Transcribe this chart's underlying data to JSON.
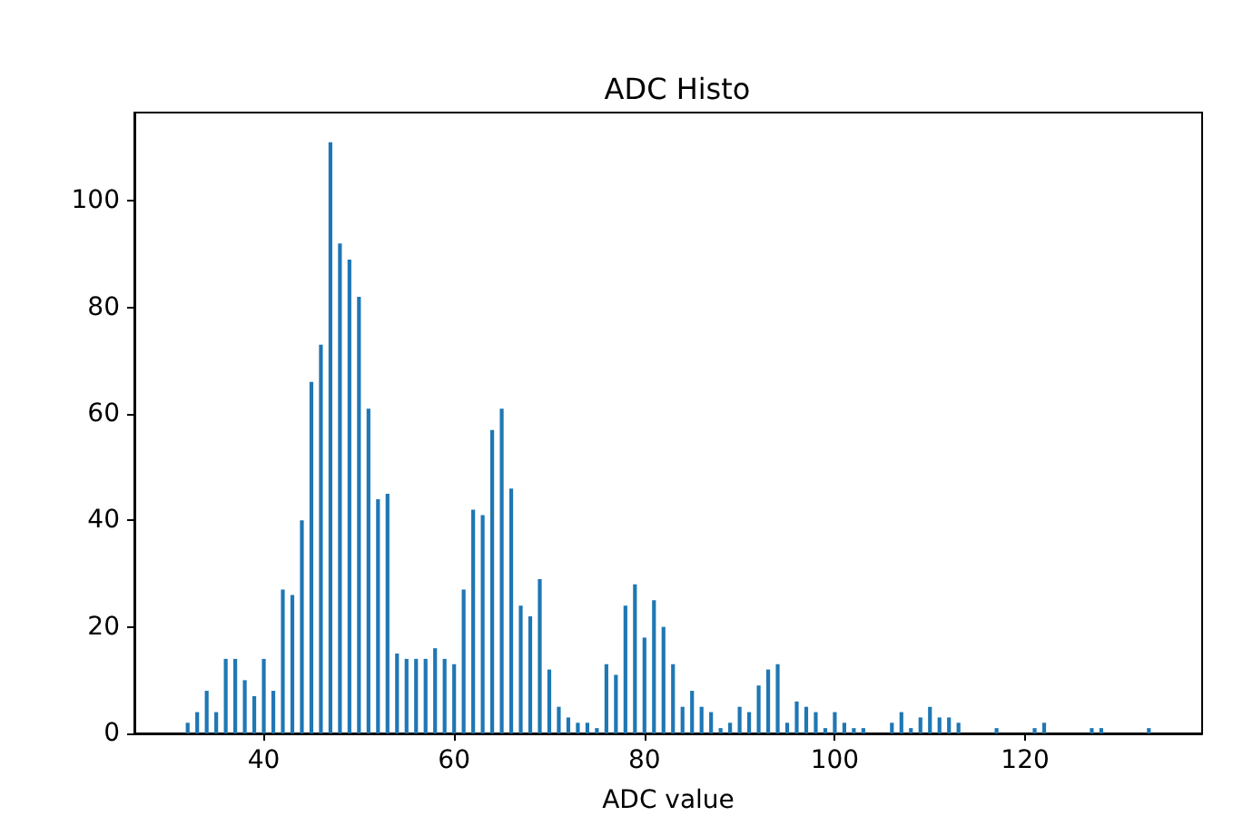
{
  "chart_data": {
    "type": "histogram",
    "title": "ADC Histo",
    "xlabel": "ADC value",
    "color": "#1f77b4",
    "bins": [
      31.5,
      32.5,
      33.5,
      34.5,
      35.5,
      36.5,
      37.5,
      38.5,
      39.5,
      40.5,
      41.5,
      42.5,
      43.5,
      44.5,
      45.5,
      46.5,
      47.5,
      48.5,
      49.5,
      50.5,
      51.5,
      52.5,
      53.5,
      54.5,
      55.5,
      56.5,
      57.5,
      58.5,
      59.5,
      60.5,
      61.5,
      62.5,
      63.5,
      64.5,
      65.5,
      66.5,
      67.5,
      68.5,
      69.5,
      70.5,
      71.5,
      72.5,
      73.5,
      74.5,
      75.5,
      76.5,
      77.5,
      78.5,
      79.5,
      80.5,
      81.5,
      82.5,
      83.5,
      84.5,
      85.5,
      86.5,
      87.5,
      88.5,
      89.5,
      90.5,
      91.5,
      92.5,
      93.5,
      94.5,
      95.5,
      96.5,
      97.5,
      98.5,
      99.5,
      100.5,
      101.5,
      102.5,
      103.5,
      104.5,
      105.5,
      106.5,
      107.5,
      108.5,
      109.5,
      110.5,
      111.5,
      112.5,
      113.5,
      114.5,
      115.5,
      116.5,
      117.5,
      118.5,
      119.5,
      120.5,
      121.5,
      122.5,
      123.5,
      124.5,
      125.5,
      126.5,
      127.5,
      128.5,
      129.5,
      130.5,
      131.5,
      132.5,
      133.5
    ],
    "values": [
      2,
      4,
      8,
      4,
      14,
      14,
      10,
      7,
      14,
      8,
      27,
      26,
      40,
      66,
      73,
      111,
      92,
      89,
      82,
      61,
      44,
      45,
      15,
      14,
      14,
      14,
      16,
      14,
      13,
      27,
      42,
      41,
      57,
      61,
      46,
      24,
      22,
      29,
      12,
      5,
      3,
      2,
      2,
      1,
      13,
      11,
      24,
      28,
      18,
      25,
      20,
      13,
      5,
      8,
      5,
      4,
      1,
      2,
      5,
      4,
      9,
      12,
      13,
      2,
      6,
      5,
      4,
      1,
      4,
      2,
      1,
      1,
      0,
      0,
      2,
      4,
      1,
      3,
      5,
      3,
      3,
      2,
      0,
      0,
      0,
      1,
      0,
      0,
      0,
      1,
      2,
      0,
      0,
      0,
      0,
      1,
      1,
      0,
      0,
      0,
      0,
      1
    ],
    "xlim": [
      26.4,
      138.6
    ],
    "ylim": [
      0,
      116.6
    ],
    "xticks": [
      40,
      60,
      80,
      100,
      120
    ],
    "yticks": [
      0,
      20,
      40,
      60,
      80,
      100
    ]
  }
}
